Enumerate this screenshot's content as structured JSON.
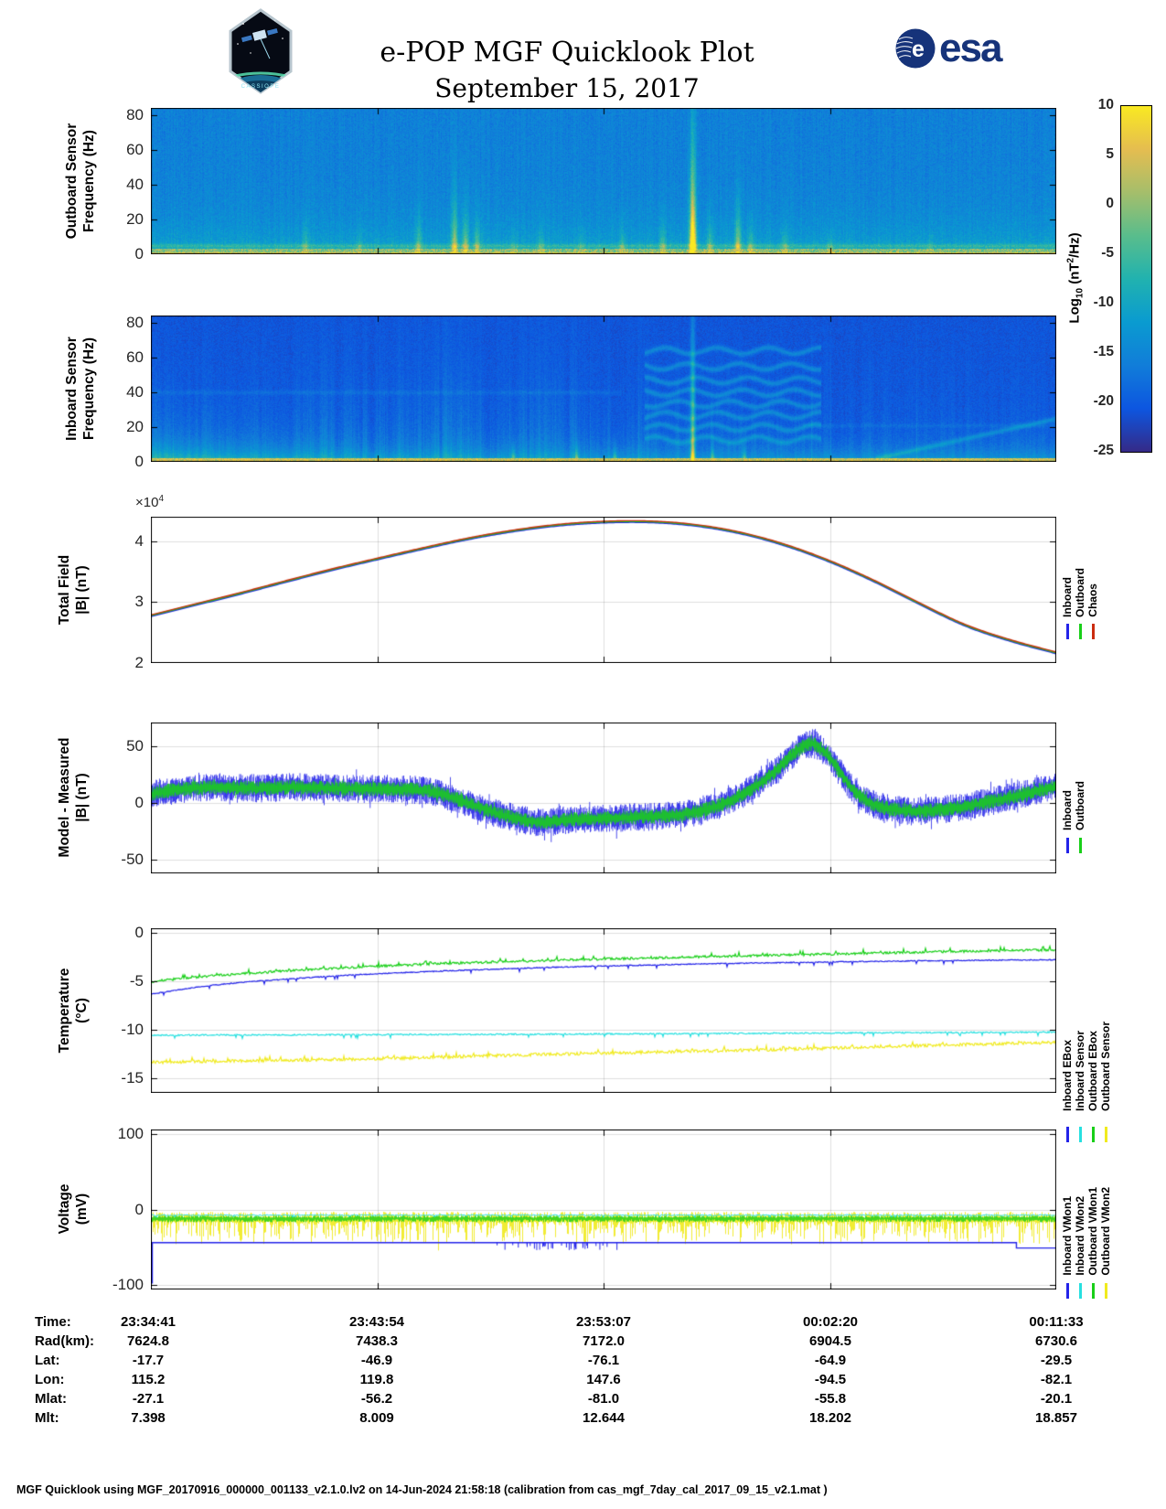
{
  "header": {
    "title": "e-POP MGF Quicklook Plot",
    "date": "September 15, 2017",
    "patch_label": "CASSIOPE",
    "esa_label": "esa",
    "esa_e": "e"
  },
  "colorbar": {
    "ticks": [
      "10",
      "5",
      "0",
      "-5",
      "-10",
      "-15",
      "-20",
      "-25"
    ],
    "label": {
      "pre": "Log",
      "sub": "10",
      "mid": " (nT",
      "sup": "2",
      "post": "/Hz)"
    },
    "gradient_top": "#f9e921",
    "gradient_bottom": "#352a87"
  },
  "panels": [
    {
      "ylabel1": "Outboard Sensor",
      "ylabel2": "Frequency (Hz)",
      "yticks": [
        "80",
        "60",
        "40",
        "20",
        "0"
      ]
    },
    {
      "ylabel1": "Inboard Sensor",
      "ylabel2": "Frequency (Hz)",
      "yticks": [
        "80",
        "60",
        "40",
        "20",
        "0"
      ]
    },
    {
      "ylabel1": "Total Field",
      "ylabel2": "|B| (nT)",
      "exp_base": "×10",
      "exponent": "4",
      "yticks": [
        "4",
        "3",
        "2"
      ],
      "legend": [
        {
          "label": "Inboard",
          "color": "#2323e8"
        },
        {
          "label": "Outboard",
          "color": "#19cf19"
        },
        {
          "label": "Chaos",
          "color": "#cb2c10"
        }
      ]
    },
    {
      "ylabel1": "Model - Measured",
      "ylabel2": "|B| (nT)",
      "yticks": [
        "50",
        "0",
        "-50"
      ],
      "legend": [
        {
          "label": "Inboard",
          "color": "#2323e8"
        },
        {
          "label": "Outboard",
          "color": "#19cf19"
        }
      ]
    },
    {
      "ylabel1": "Temperature",
      "ylabel2": "(°C)",
      "yticks": [
        "0",
        "-5",
        "-10",
        "-15"
      ],
      "legend": [
        {
          "label": "Inboard EBox",
          "color": "#2323e8"
        },
        {
          "label": "Inboard Sensor",
          "color": "#27e0e0"
        },
        {
          "label": "Outboard EBox",
          "color": "#19cf19"
        },
        {
          "label": "Outboard Sensor",
          "color": "#f0ea1e"
        }
      ]
    },
    {
      "ylabel1": "Voltage",
      "ylabel2": "(mV)",
      "yticks": [
        "100",
        "0",
        "-100"
      ],
      "legend": [
        {
          "label": "Inboard VMon1",
          "color": "#2323e8"
        },
        {
          "label": "Inboard VMon2",
          "color": "#27e0e0"
        },
        {
          "label": "Outboard VMon1",
          "color": "#19cf19"
        },
        {
          "label": "Outboard VMon2",
          "color": "#f0ea1e"
        }
      ]
    }
  ],
  "table": {
    "rows": [
      {
        "label": "Time:",
        "values": [
          "23:34:41",
          "23:43:54",
          "23:53:07",
          "00:02:20",
          "00:11:33"
        ]
      },
      {
        "label": "Rad(km):",
        "values": [
          "7624.8",
          "7438.3",
          "7172.0",
          "6904.5",
          "6730.6"
        ]
      },
      {
        "label": "Lat:",
        "values": [
          "-17.7",
          "-46.9",
          "-76.1",
          "-64.9",
          "-29.5"
        ]
      },
      {
        "label": "Lon:",
        "values": [
          "115.2",
          "119.8",
          "147.6",
          "-94.5",
          "-82.1"
        ]
      },
      {
        "label": "Mlat:",
        "values": [
          "-27.1",
          "-56.2",
          "-81.0",
          "-55.8",
          "-20.1"
        ]
      },
      {
        "label": "Mlt:",
        "values": [
          "7.398",
          "8.009",
          "12.644",
          "18.202",
          "18.857"
        ]
      }
    ]
  },
  "footer": {
    "text": "MGF Quicklook using MGF_20170916_000000_001133_v2.1.0.lv2 on 14-Jun-2024 21:58:18 (calibration from cas_mgf_7day_cal_2017_09_15_v2.1.mat )"
  },
  "chart_data": [
    {
      "id": "outboard_spectrogram",
      "type": "heatmap",
      "panel_title": "Outboard Sensor",
      "ylabel": "Frequency (Hz)",
      "ylim": [
        0,
        84
      ],
      "ytick_labels": [
        "80",
        "60",
        "40",
        "20",
        "0"
      ],
      "clim": [
        -25,
        10
      ],
      "colorbar_label": "Log10 (nT2/Hz)",
      "base_level": 0.265,
      "low_freq_glow": 0.185,
      "noise": 0.11,
      "spikes": [
        [
          0.17,
          10,
          0.25
        ],
        [
          0.23,
          8,
          0.2
        ],
        [
          0.295,
          14,
          0.3
        ],
        [
          0.335,
          22,
          0.45
        ],
        [
          0.347,
          16,
          0.4
        ],
        [
          0.36,
          12,
          0.35
        ],
        [
          0.4,
          7,
          0.2
        ],
        [
          0.43,
          8,
          0.25
        ],
        [
          0.475,
          7,
          0.2
        ],
        [
          0.52,
          9,
          0.25
        ],
        [
          0.565,
          11,
          0.3
        ],
        [
          0.598,
          40,
          0.9
        ],
        [
          0.617,
          12,
          0.3
        ],
        [
          0.648,
          18,
          0.45
        ],
        [
          0.662,
          10,
          0.3
        ],
        [
          0.7,
          9,
          0.25
        ],
        [
          0.75,
          7,
          0.2
        ],
        [
          0.86,
          6,
          0.15
        ]
      ]
    },
    {
      "id": "inboard_spectrogram",
      "type": "heatmap",
      "panel_title": "Inboard Sensor",
      "ylabel": "Frequency (Hz)",
      "ylim": [
        0,
        84
      ],
      "ytick_labels": [
        "80",
        "60",
        "40",
        "20",
        "0"
      ],
      "clim": [
        -25,
        10
      ],
      "base_level": 0.115,
      "noise": 0.075,
      "bottom_glow": 0.27,
      "left_glow_end": 0.28,
      "streak_window": [
        0.16,
        0.47
      ],
      "arc_window": [
        0.545,
        0.74
      ],
      "arc_bands": [
        13,
        20,
        27,
        33.5,
        40,
        47,
        55,
        64
      ],
      "main_spike_x": 0.598,
      "bottom_spikes": [
        0.4,
        0.47,
        0.512,
        0.598,
        0.62,
        0.655
      ],
      "diag_line": {
        "x_start": 0.8,
        "f_start": 2,
        "f_end": 25
      }
    },
    {
      "id": "total_field",
      "type": "line",
      "ylabel": "Total Field |B| (nT)",
      "y_scale": "x10^4",
      "ylim": [
        2,
        4.4
      ],
      "yticks": [
        4,
        3,
        2
      ],
      "ytick_labels": [
        "4",
        "3",
        "2"
      ],
      "series": [
        {
          "name": "Inboard",
          "color": "#2323e8"
        },
        {
          "name": "Outboard",
          "color": "#19cf19"
        },
        {
          "name": "Chaos",
          "color": "#cb2c10"
        }
      ],
      "anchors": [
        [
          0,
          2.79
        ],
        [
          0.05,
          2.975
        ],
        [
          0.1,
          3.16
        ],
        [
          0.15,
          3.355
        ],
        [
          0.2,
          3.545
        ],
        [
          0.25,
          3.72
        ],
        [
          0.3,
          3.89
        ],
        [
          0.35,
          4.05
        ],
        [
          0.4,
          4.18
        ],
        [
          0.45,
          4.275
        ],
        [
          0.5,
          4.325
        ],
        [
          0.55,
          4.33
        ],
        [
          0.6,
          4.275
        ],
        [
          0.65,
          4.15
        ],
        [
          0.7,
          3.95
        ],
        [
          0.75,
          3.68
        ],
        [
          0.8,
          3.35
        ],
        [
          0.85,
          2.98
        ],
        [
          0.9,
          2.63
        ],
        [
          0.95,
          2.38
        ],
        [
          1,
          2.18
        ]
      ]
    },
    {
      "id": "model_minus_measured",
      "type": "line",
      "ylabel": "Model - Measured |B| (nT)",
      "ylim": [
        -62,
        71
      ],
      "yticks": [
        50,
        0,
        -50
      ],
      "ytick_labels": [
        "50",
        "0",
        "-50"
      ],
      "series": [
        {
          "name": "Inboard",
          "color": "#2323e8",
          "band_halfwidth": 12.5
        },
        {
          "name": "Outboard",
          "color": "#19cf19",
          "band_halfwidth": 6.5
        }
      ],
      "center_anchors": [
        [
          0,
          8
        ],
        [
          0.03,
          12
        ],
        [
          0.07,
          14
        ],
        [
          0.12,
          13
        ],
        [
          0.16,
          14
        ],
        [
          0.2,
          13
        ],
        [
          0.24,
          12.5
        ],
        [
          0.28,
          12
        ],
        [
          0.31,
          10
        ],
        [
          0.34,
          3
        ],
        [
          0.37,
          -6
        ],
        [
          0.4,
          -13
        ],
        [
          0.43,
          -17
        ],
        [
          0.46,
          -15
        ],
        [
          0.49,
          -13.5
        ],
        [
          0.52,
          -13
        ],
        [
          0.55,
          -12
        ],
        [
          0.58,
          -10.5
        ],
        [
          0.61,
          -6
        ],
        [
          0.64,
          2
        ],
        [
          0.66,
          11
        ],
        [
          0.68,
          22
        ],
        [
          0.7,
          36
        ],
        [
          0.715,
          47
        ],
        [
          0.73,
          52
        ],
        [
          0.745,
          44
        ],
        [
          0.76,
          28
        ],
        [
          0.775,
          12
        ],
        [
          0.79,
          2
        ],
        [
          0.81,
          -4
        ],
        [
          0.84,
          -7
        ],
        [
          0.87,
          -6
        ],
        [
          0.9,
          -3
        ],
        [
          0.93,
          2
        ],
        [
          0.96,
          7
        ],
        [
          0.98,
          11
        ],
        [
          1,
          15
        ]
      ]
    },
    {
      "id": "temperature",
      "type": "line",
      "ylabel": "Temperature (°C)",
      "ylim": [
        -16.5,
        0.5
      ],
      "yticks": [
        0,
        -5,
        -10,
        -15
      ],
      "ytick_labels": [
        "0",
        "-5",
        "-10",
        "-15"
      ],
      "series": [
        {
          "name": "Inboard EBox",
          "color": "#2323e8",
          "noise": 0.05,
          "anchors": [
            [
              0,
              -6.3
            ],
            [
              0.05,
              -5.6
            ],
            [
              0.1,
              -5.1
            ],
            [
              0.15,
              -4.75
            ],
            [
              0.2,
              -4.45
            ],
            [
              0.25,
              -4.2
            ],
            [
              0.3,
              -4.0
            ],
            [
              0.35,
              -3.82
            ],
            [
              0.4,
              -3.66
            ],
            [
              0.45,
              -3.52
            ],
            [
              0.5,
              -3.4
            ],
            [
              0.55,
              -3.3
            ],
            [
              0.6,
              -3.2
            ],
            [
              0.65,
              -3.12
            ],
            [
              0.7,
              -3.05
            ],
            [
              0.75,
              -2.98
            ],
            [
              0.8,
              -2.92
            ],
            [
              0.85,
              -2.87
            ],
            [
              0.9,
              -2.82
            ],
            [
              0.95,
              -2.78
            ],
            [
              1,
              -2.75
            ]
          ]
        },
        {
          "name": "Inboard Sensor",
          "color": "#27e0e0",
          "noise": 0.07,
          "anchors": [
            [
              0,
              -10.55
            ],
            [
              0.2,
              -10.5
            ],
            [
              0.4,
              -10.45
            ],
            [
              0.6,
              -10.38
            ],
            [
              0.8,
              -10.3
            ],
            [
              1,
              -10.22
            ]
          ]
        },
        {
          "name": "Outboard EBox",
          "color": "#19cf19",
          "noise": 0.12,
          "anchors": [
            [
              0,
              -5.0
            ],
            [
              0.05,
              -4.55
            ],
            [
              0.1,
              -4.2
            ],
            [
              0.15,
              -3.9
            ],
            [
              0.2,
              -3.65
            ],
            [
              0.25,
              -3.42
            ],
            [
              0.3,
              -3.22
            ],
            [
              0.35,
              -3.06
            ],
            [
              0.4,
              -2.92
            ],
            [
              0.45,
              -2.8
            ],
            [
              0.5,
              -2.68
            ],
            [
              0.55,
              -2.58
            ],
            [
              0.6,
              -2.46
            ],
            [
              0.65,
              -2.36
            ],
            [
              0.7,
              -2.26
            ],
            [
              0.75,
              -2.16
            ],
            [
              0.8,
              -2.06
            ],
            [
              0.85,
              -1.97
            ],
            [
              0.9,
              -1.88
            ],
            [
              0.95,
              -1.8
            ],
            [
              1,
              -1.72
            ]
          ]
        },
        {
          "name": "Outboard Sensor",
          "color": "#f0ea1e",
          "noise": 0.16,
          "anchors": [
            [
              0,
              -13.35
            ],
            [
              0.1,
              -13.2
            ],
            [
              0.2,
              -13.05
            ],
            [
              0.3,
              -12.85
            ],
            [
              0.4,
              -12.6
            ],
            [
              0.5,
              -12.4
            ],
            [
              0.6,
              -12.2
            ],
            [
              0.7,
              -12.0
            ],
            [
              0.8,
              -11.75
            ],
            [
              0.9,
              -11.5
            ],
            [
              1,
              -11.3
            ]
          ]
        }
      ]
    },
    {
      "id": "voltage",
      "type": "line",
      "ylabel": "Voltage (mV)",
      "ylim": [
        -106,
        106
      ],
      "yticks": [
        100,
        0,
        -100
      ],
      "ytick_labels": [
        "100",
        "0",
        "-100"
      ],
      "series": [
        {
          "name": "Inboard VMon1",
          "color": "#2323e8",
          "base": -44,
          "step_x": 0.956,
          "step_value": -51,
          "startup_value": -98,
          "tick_cluster": [
            0.37,
            0.52
          ]
        },
        {
          "name": "Inboard VMon2",
          "color": "#27e0e0",
          "base": -7.5,
          "noise": 0.8
        },
        {
          "name": "Outboard VMon1",
          "color": "#19cf19",
          "base": -11,
          "noise": 3.5
        },
        {
          "name": "Outboard VMon2",
          "color": "#f0ea1e",
          "base": -13,
          "noise": 14
        }
      ]
    }
  ]
}
